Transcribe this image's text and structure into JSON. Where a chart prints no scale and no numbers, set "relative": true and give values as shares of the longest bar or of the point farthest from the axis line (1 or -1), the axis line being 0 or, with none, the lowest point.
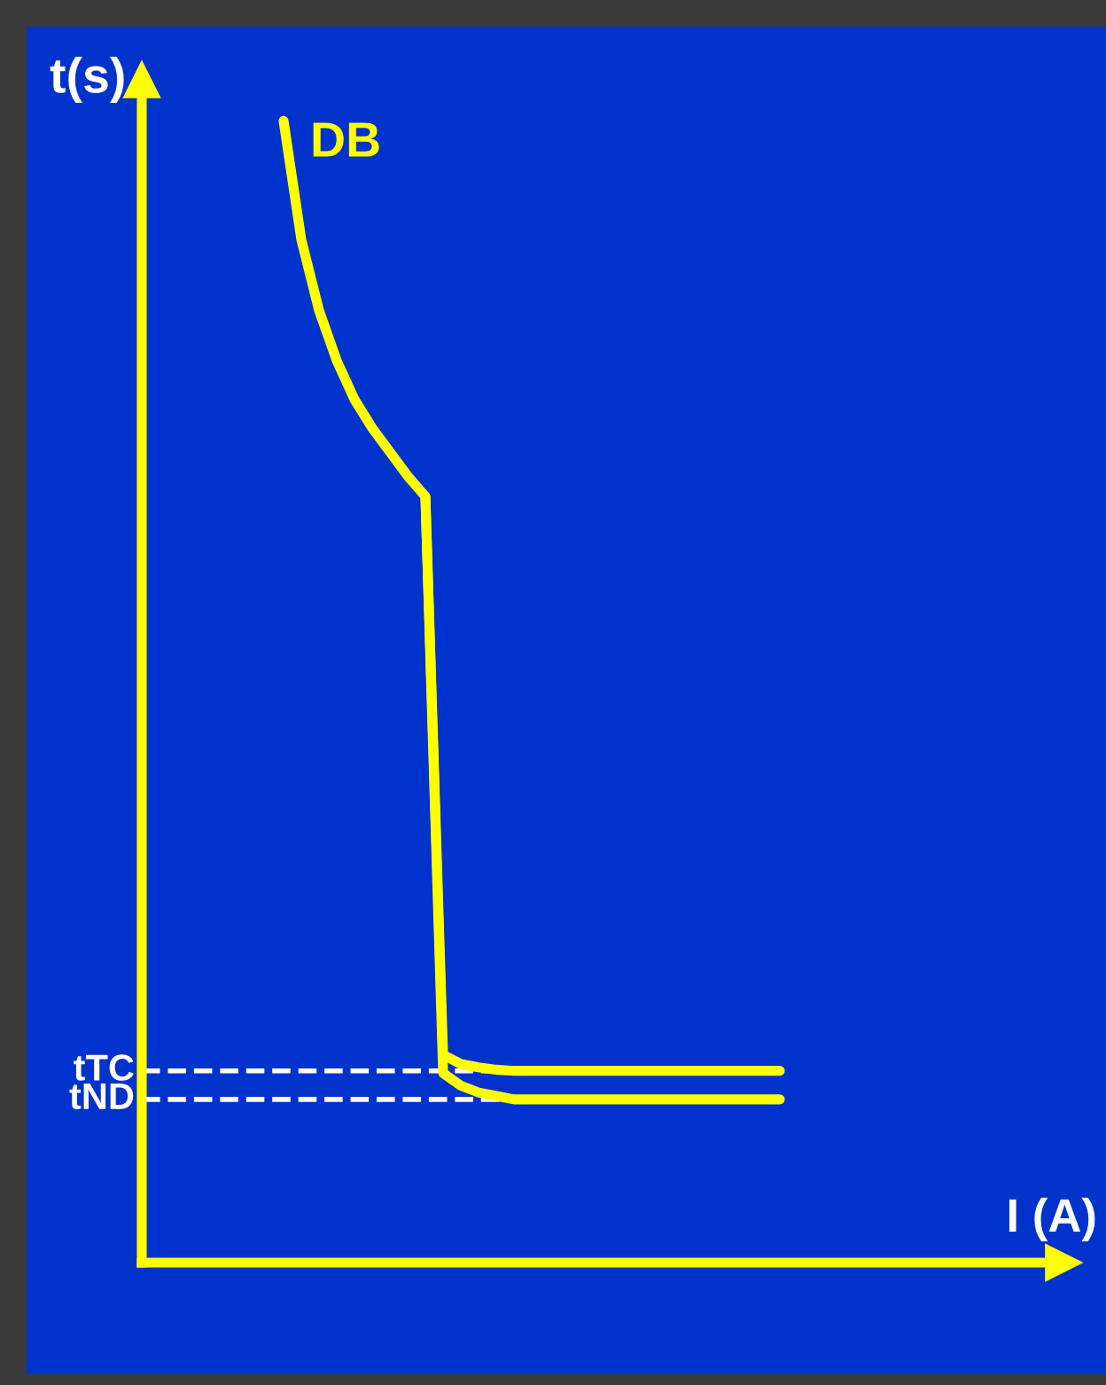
{
  "chart_data": {
    "type": "line",
    "relative": true,
    "xlabel": "I (A)",
    "ylabel": "t(s)",
    "legend": false,
    "line_style": "solid",
    "marker": "none",
    "categories": [
      null,
      null,
      null,
      null,
      null,
      null,
      null,
      null,
      null,
      null,
      null,
      null,
      null,
      null,
      null,
      null,
      null,
      null,
      null,
      null,
      null,
      null,
      null,
      null,
      null,
      null,
      null,
      null,
      null,
      null,
      null,
      null,
      null,
      null,
      null,
      null,
      null,
      null,
      null,
      null,
      null,
      null,
      null,
      null,
      null,
      null,
      null,
      null,
      null
    ],
    "series": [
      {
        "name": "DB",
        "color": "#ffff00",
        "values": [
          null,
          null,
          null,
          null,
          null,
          null,
          null,
          null,
          1.0,
          0.896,
          0.834,
          0.79,
          0.756,
          0.731,
          0.71,
          0.689,
          0.671,
          0.182,
          0.174,
          0.171,
          0.169,
          0.168,
          0.168,
          0.168,
          0.168,
          0.168,
          0.168,
          0.168,
          0.168,
          0.168,
          0.168,
          0.168,
          0.168,
          0.168,
          0.168,
          0.168,
          0.168,
          null,
          null,
          null,
          null,
          null,
          null,
          null,
          null,
          null,
          null,
          null,
          null
        ]
      },
      {
        "color": "#ffff00",
        "values": [
          null,
          null,
          null,
          null,
          null,
          null,
          null,
          null,
          null,
          null,
          null,
          null,
          null,
          null,
          null,
          null,
          0.671,
          0.166,
          0.155,
          0.149,
          0.146,
          0.143,
          0.143,
          0.143,
          0.143,
          0.143,
          0.143,
          0.143,
          0.143,
          0.143,
          0.143,
          0.143,
          0.143,
          0.143,
          0.143,
          0.143,
          0.143,
          null,
          null,
          null,
          null,
          null,
          null,
          null,
          null,
          null,
          null,
          null,
          null
        ]
      }
    ],
    "ref_lines": [
      {
        "axis": "y",
        "value": 0.168,
        "label": "tTC",
        "color": "#ffffff",
        "line_style": "dashed"
      },
      {
        "axis": "y",
        "value": 0.143,
        "label": "tND",
        "color": "#ffffff",
        "line_style": "dashed"
      }
    ]
  }
}
